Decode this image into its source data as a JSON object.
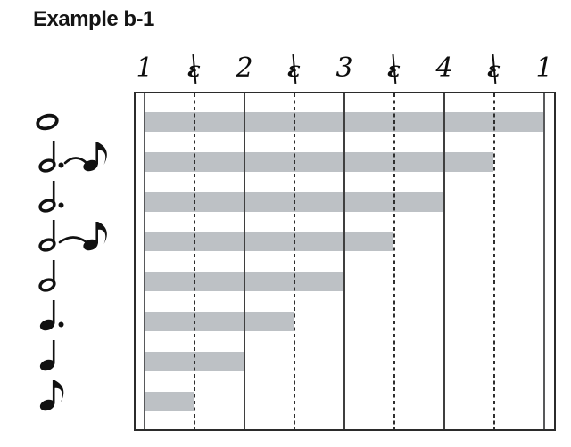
{
  "title": "Example b-1",
  "colors": {
    "bar": "#bdc1c5",
    "beat_line": "#3f3f3f",
    "edge_beat_line": "#58595b",
    "dashed_line": "#2e2e2e",
    "plot_border": "#2b2b2b",
    "ink": "#111111"
  },
  "chart_data": {
    "type": "bar",
    "orientation": "horizontal",
    "title": "Example b-1",
    "categories": [
      "whole note",
      "dotted half note tied to eighth note",
      "dotted half note",
      "half note tied to eighth note",
      "half note",
      "dotted quarter note",
      "quarter note",
      "eighth note"
    ],
    "category_icons": [
      "whole-note",
      "dotted-half-note-tied-to-eighth-note",
      "dotted-half-note",
      "half-note-tied-to-eighth-note",
      "half-note",
      "dotted-quarter-note",
      "quarter-note",
      "eighth-note"
    ],
    "values": [
      4,
      3.5,
      3,
      2.5,
      2,
      1.5,
      1,
      0.5
    ],
    "value_unit": "beats",
    "xlabel": "",
    "ylabel": "",
    "x_tick_labels": [
      "1",
      "&",
      "2",
      "&",
      "3",
      "&",
      "4",
      "&",
      "1"
    ],
    "x_range_beats": [
      0,
      4
    ],
    "grid": {
      "solid_lines_at_beats": [
        0,
        1,
        2,
        3,
        4
      ],
      "dashed_lines_at_beats": [
        0.5,
        1.5,
        2.5,
        3.5
      ]
    },
    "legend": "none",
    "bar_color": "#bdc1c5"
  }
}
